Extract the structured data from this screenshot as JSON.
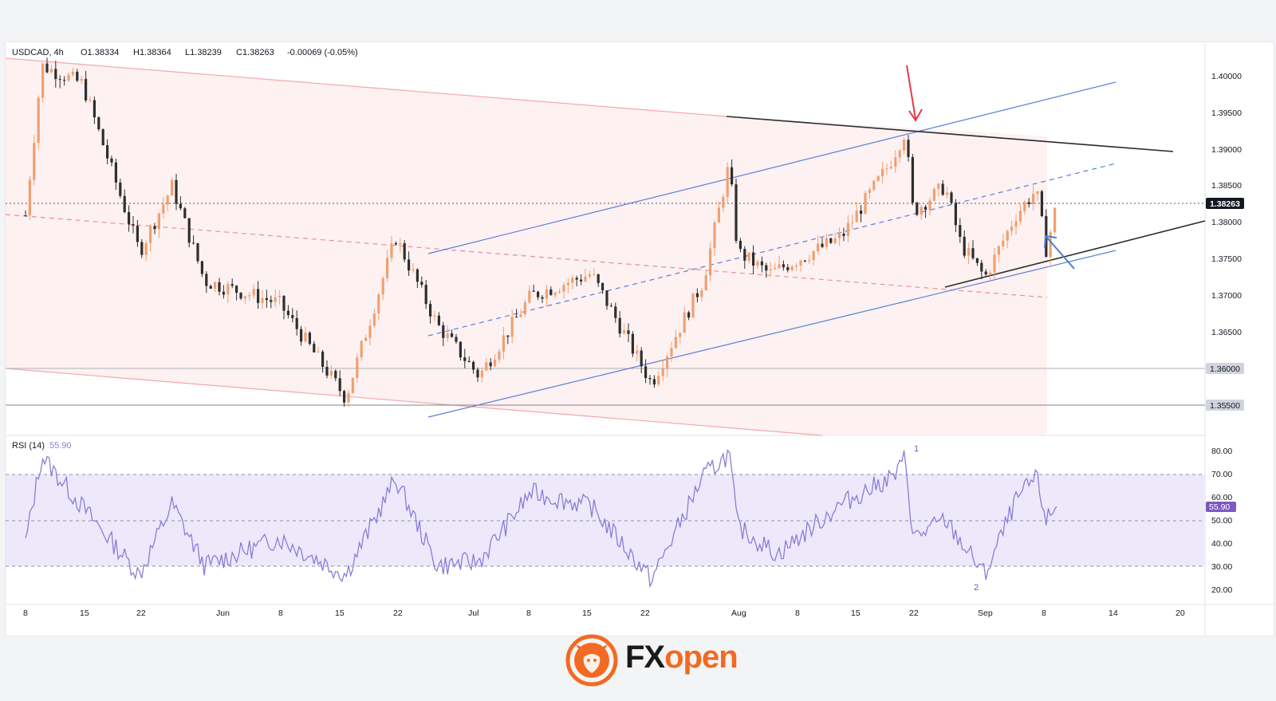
{
  "header": {
    "symbol": "USDCAD, 4h",
    "open": "O1.38334",
    "high": "H1.38364",
    "low": "L1.38239",
    "close": "C1.38263",
    "change": "-0.00069 (-0.05%)"
  },
  "rsi": {
    "label": "RSI (14)",
    "value": "55.90",
    "marker_1": "1",
    "marker_2": "2"
  },
  "price_axis": {
    "ticks": [
      "1.40000",
      "1.39500",
      "1.39000",
      "1.38500",
      "1.38000",
      "1.37500",
      "1.37000",
      "1.36500",
      "1.36000",
      "1.35500"
    ],
    "current_label": "1.38263",
    "level_1360": "1.36000",
    "level_1355": "1.35500"
  },
  "rsi_axis": {
    "ticks": [
      "80.00",
      "70.00",
      "60.00",
      "50.00",
      "40.00",
      "30.00",
      "20.00"
    ],
    "current_label": "55.90"
  },
  "time_axis": {
    "ticks": [
      "8",
      "15",
      "22",
      "Jun",
      "8",
      "15",
      "22",
      "Jul",
      "8",
      "15",
      "22",
      "Aug",
      "8",
      "15",
      "22",
      "Sep",
      "8",
      "14",
      "20"
    ]
  },
  "colors": {
    "bull": "#f0a070",
    "bear": "#2e2e2e",
    "channel_blue": "#5b7fd6",
    "red_channel": "#f0a0a8",
    "rsi_line": "#8c7cd6",
    "rsi_band": "#ede9fb",
    "red_arrow": "#e53945",
    "blue_arrow": "#4a7fd6",
    "brand_orange": "#f26a21"
  },
  "logo": {
    "brand": "FXopen",
    "part1": "FX",
    "part2": "open"
  },
  "chart_data": {
    "type": "candlestick",
    "symbol": "USDCAD",
    "timeframe": "4h",
    "y_range": [
      1.353,
      1.4035
    ],
    "close": 1.38263,
    "horizontal_levels": [
      1.36,
      1.355
    ],
    "approx_path": [
      {
        "t": "May 8",
        "price": 1.381
      },
      {
        "t": "May 10",
        "price": 1.4015
      },
      {
        "t": "May 15",
        "price": 1.399
      },
      {
        "t": "May 22",
        "price": 1.376
      },
      {
        "t": "May 26",
        "price": 1.385
      },
      {
        "t": "May 30",
        "price": 1.372
      },
      {
        "t": "Jun 8",
        "price": 1.369
      },
      {
        "t": "Jun 16",
        "price": 1.356
      },
      {
        "t": "Jun 22",
        "price": 1.378
      },
      {
        "t": "Jun 27",
        "price": 1.366
      },
      {
        "t": "Jul 2",
        "price": 1.359
      },
      {
        "t": "Jul 8",
        "price": 1.37
      },
      {
        "t": "Jul 15",
        "price": 1.373
      },
      {
        "t": "Jul 22",
        "price": 1.358
      },
      {
        "t": "Jul 28",
        "price": 1.372
      },
      {
        "t": "Jul 31",
        "price": 1.388
      },
      {
        "t": "Aug 1",
        "price": 1.376
      },
      {
        "t": "Aug 5",
        "price": 1.373
      },
      {
        "t": "Aug 14",
        "price": 1.378
      },
      {
        "t": "Aug 20",
        "price": 1.388
      },
      {
        "t": "Aug 22",
        "price": 1.3925
      },
      {
        "t": "Aug 23",
        "price": 1.3815
      },
      {
        "t": "Aug 27",
        "price": 1.385
      },
      {
        "t": "Aug 29",
        "price": 1.377
      },
      {
        "t": "Sep 1",
        "price": 1.3725
      },
      {
        "t": "Sep 4",
        "price": 1.381
      },
      {
        "t": "Sep 6",
        "price": 1.3845
      },
      {
        "t": "Sep 7",
        "price": 1.3762
      },
      {
        "t": "Sep 8",
        "price": 1.3826
      }
    ],
    "rsi_range": [
      15,
      85
    ],
    "rsi_levels": [
      70,
      50,
      30
    ],
    "rsi_current": 55.9,
    "rsi_path": [
      {
        "t": "May 8",
        "v": 40
      },
      {
        "t": "May 10",
        "v": 78
      },
      {
        "t": "May 14",
        "v": 60
      },
      {
        "t": "May 22",
        "v": 26
      },
      {
        "t": "May 26",
        "v": 57
      },
      {
        "t": "May 30",
        "v": 30
      },
      {
        "t": "Jun 8",
        "v": 42
      },
      {
        "t": "Jun 16",
        "v": 26
      },
      {
        "t": "Jun 22",
        "v": 68
      },
      {
        "t": "Jun 27",
        "v": 30
      },
      {
        "t": "Jul 2",
        "v": 32
      },
      {
        "t": "Jul 8",
        "v": 62
      },
      {
        "t": "Jul 15",
        "v": 56
      },
      {
        "t": "Jul 22",
        "v": 24
      },
      {
        "t": "Jul 28",
        "v": 69
      },
      {
        "t": "Jul 31",
        "v": 79
      },
      {
        "t": "Aug 1",
        "v": 47
      },
      {
        "t": "Aug 6",
        "v": 35
      },
      {
        "t": "Aug 14",
        "v": 57
      },
      {
        "t": "Aug 21",
        "v": 70
      },
      {
        "t": "Aug 22",
        "v": 78
      },
      {
        "t": "Aug 23",
        "v": 42
      },
      {
        "t": "Aug 27",
        "v": 50
      },
      {
        "t": "Sep 1",
        "v": 26
      },
      {
        "t": "Sep 4",
        "v": 58
      },
      {
        "t": "Sep 6",
        "v": 69
      },
      {
        "t": "Sep 7",
        "v": 50
      },
      {
        "t": "Sep 8",
        "v": 55.9
      }
    ]
  }
}
